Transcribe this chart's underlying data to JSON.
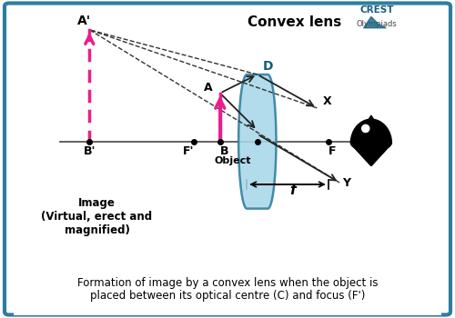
{
  "bg_color": "#ffffff",
  "border_color": "#2e7d9e",
  "caption_text": "Formation of image by a convex lens when the object is\nplaced between its optical centre (C) and focus (F')",
  "title_text": "Convex lens",
  "lens_color": "#a8d8ea",
  "lens_edge_color": "#2e7d9e",
  "object_color": "#e91e8c",
  "image_color": "#e91e8c",
  "ray_color": "#222222",
  "axis_color": "#555555",
  "label_Ap": "A'",
  "label_Bp": "B'",
  "label_A": "A",
  "label_B": "B",
  "label_D": "D",
  "label_F": "F",
  "label_Fp": "F'",
  "label_Object": "Object",
  "label_X": "X",
  "label_Y": "Y",
  "label_Image": "Image\n(Virtual, erect and\nmagnified)",
  "label_f": "f",
  "crest_color": "#1a6080"
}
